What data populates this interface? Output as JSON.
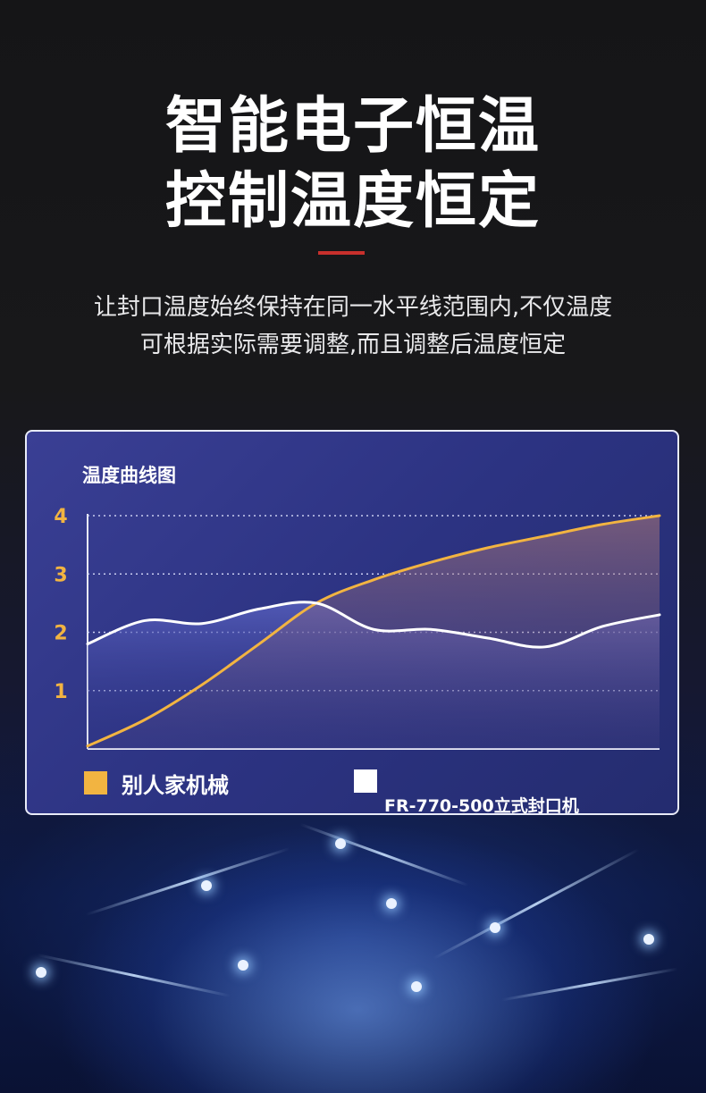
{
  "headline": {
    "line1": "智能电子恒温",
    "line2": "控制温度恒定"
  },
  "subtitle": {
    "line1": "让封口温度始终保持在同一水平线范围内,不仅温度",
    "line2": "可根据实际需要调整,而且调整后温度恒定"
  },
  "colors": {
    "accent_red": "#c8302c",
    "series_orange": "#f2b441",
    "series_white": "#ffffff",
    "panel_bg": "#2f3586"
  },
  "chart_data": {
    "type": "line",
    "title": "温度曲线图",
    "xlabel": "",
    "ylabel": "",
    "ylim": [
      0,
      4
    ],
    "yticks": [
      "1",
      "2",
      "3",
      "4"
    ],
    "grid": true,
    "legend_placement": "bottom",
    "x": [
      0,
      1,
      2,
      3,
      4,
      5,
      6,
      7,
      8,
      9,
      10
    ],
    "series": [
      {
        "name": "别人家机械",
        "color": "#f2b441",
        "values": [
          0.05,
          0.5,
          1.1,
          1.8,
          2.5,
          2.9,
          3.2,
          3.45,
          3.65,
          3.85,
          4.0
        ]
      },
      {
        "name": "FR-770-500立式封口机",
        "color": "#ffffff",
        "values": [
          1.8,
          2.2,
          2.15,
          2.4,
          2.5,
          2.05,
          2.05,
          1.9,
          1.75,
          2.1,
          2.3
        ]
      }
    ]
  }
}
